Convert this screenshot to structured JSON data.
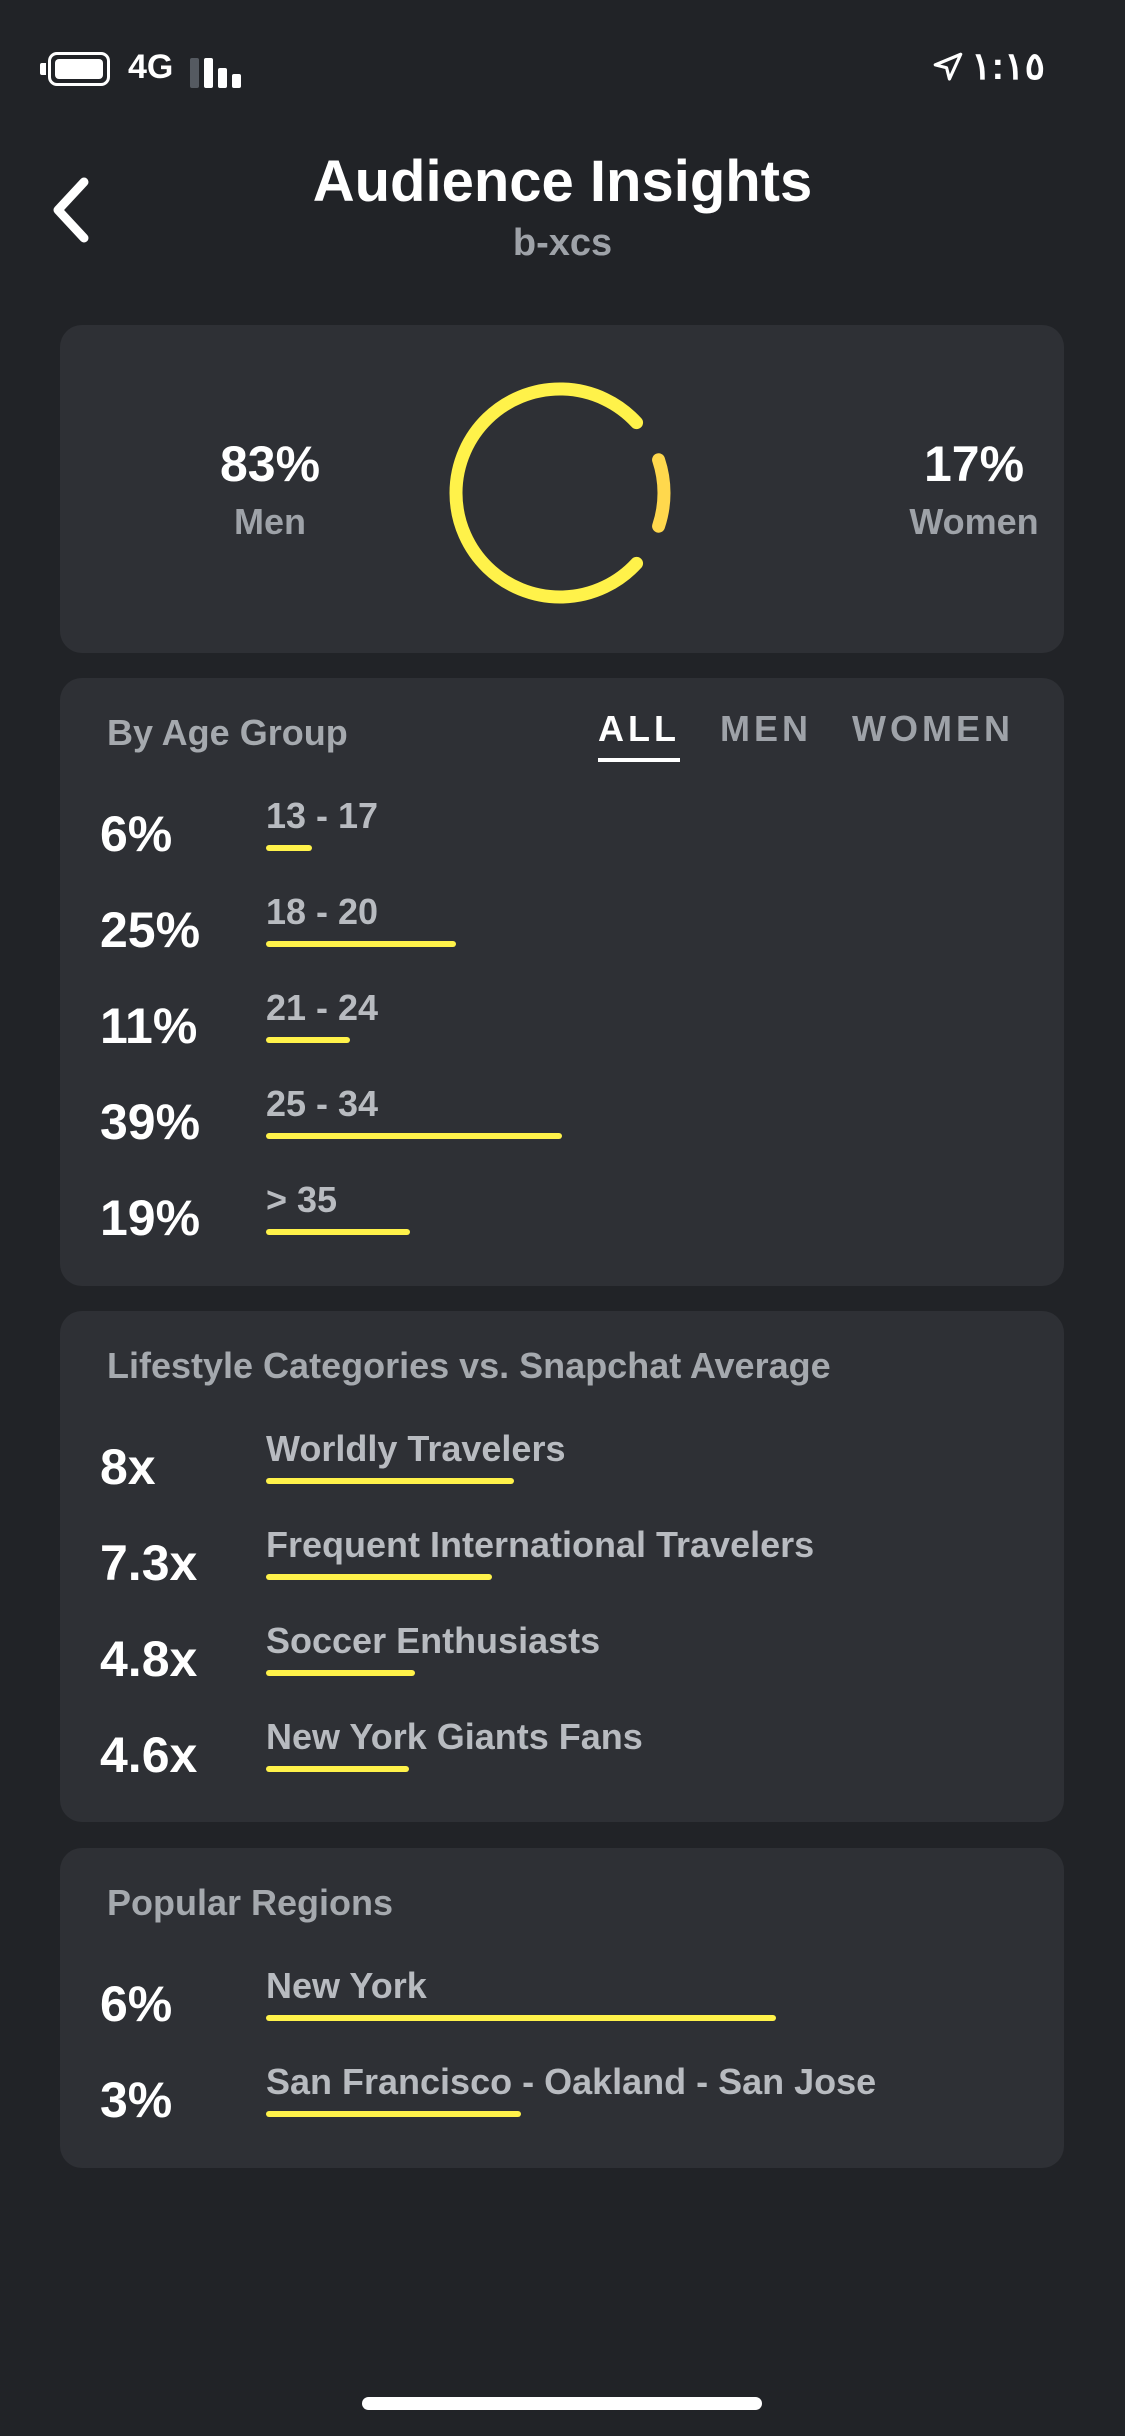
{
  "status_bar": {
    "network": "4G",
    "time": "١:١٥"
  },
  "header": {
    "title": "Audience Insights",
    "subtitle": "b-xcs"
  },
  "gender": {
    "men": {
      "value": "83%",
      "label": "Men",
      "fraction": 0.83
    },
    "women": {
      "value": "17%",
      "label": "Women",
      "fraction": 0.17
    },
    "colors": {
      "men": "#fff24a",
      "women": "#ffd84d"
    }
  },
  "age": {
    "title": "By Age Group",
    "tabs": [
      "ALL",
      "MEN",
      "WOMEN"
    ],
    "active_tab": "ALL",
    "rows": [
      {
        "value": "6%",
        "label": "13 - 17",
        "pct": 6
      },
      {
        "value": "25%",
        "label": "18 - 20",
        "pct": 25
      },
      {
        "value": "11%",
        "label": "21 - 24",
        "pct": 11
      },
      {
        "value": "39%",
        "label": "25 - 34",
        "pct": 39
      },
      {
        "value": "19%",
        "label": "> 35",
        "pct": 19
      }
    ]
  },
  "lifestyle": {
    "title": "Lifestyle Categories vs. Snapchat Average",
    "rows": [
      {
        "value": "8x",
        "label": "Worldly Travelers",
        "factor": 8
      },
      {
        "value": "7.3x",
        "label": "Frequent International Travelers",
        "factor": 7.3
      },
      {
        "value": "4.8x",
        "label": "Soccer Enthusiasts",
        "factor": 4.8
      },
      {
        "value": "4.6x",
        "label": "New York Giants Fans",
        "factor": 4.6
      }
    ]
  },
  "regions": {
    "title": "Popular Regions",
    "rows": [
      {
        "value": "6%",
        "label": "New York",
        "pct": 6
      },
      {
        "value": "3%",
        "label": "San Francisco - Oakland - San Jose",
        "pct": 3
      }
    ]
  },
  "accent_color": "#fff24a"
}
